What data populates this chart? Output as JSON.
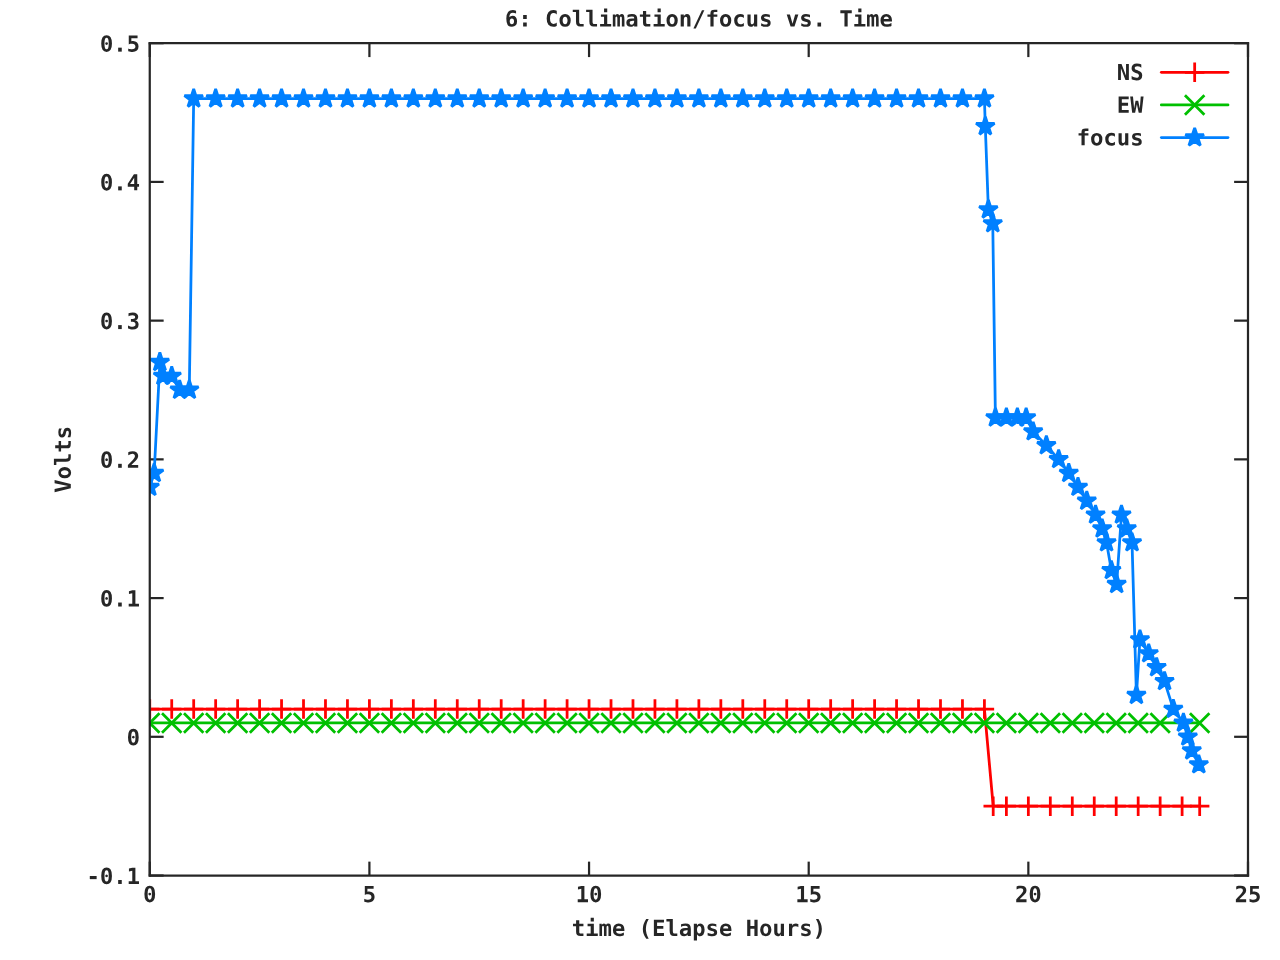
{
  "chart_data": {
    "type": "line",
    "title": "6: Collimation/focus vs. Time",
    "xlabel": "time (Elapse Hours)",
    "ylabel": "Volts",
    "xlim": [
      0,
      25
    ],
    "xticks": [
      0,
      5,
      10,
      15,
      20,
      25
    ],
    "ylim": [
      -0.1,
      0.5
    ],
    "yticks": [
      -0.1,
      0,
      0.1,
      0.2,
      0.3,
      0.4,
      0.5
    ],
    "grid": false,
    "legend": "top right",
    "line_style": "solid",
    "series": [
      {
        "name": "NS",
        "color": "#ff0000",
        "marker": "plus",
        "x": [
          0,
          0.5,
          1,
          1.5,
          2,
          2.5,
          3,
          3.5,
          4,
          4.5,
          5,
          5.5,
          6,
          6.5,
          7,
          7.5,
          8,
          8.5,
          9,
          9.5,
          10,
          10.5,
          11,
          11.5,
          12,
          12.5,
          13,
          13.5,
          14,
          14.5,
          15,
          15.5,
          16,
          16.5,
          17,
          17.5,
          18,
          18.5,
          19,
          19.2,
          19.5,
          20,
          20.5,
          21,
          21.5,
          22,
          22.5,
          23,
          23.5,
          23.9
        ],
        "values": [
          0.02,
          0.02,
          0.02,
          0.02,
          0.02,
          0.02,
          0.02,
          0.02,
          0.02,
          0.02,
          0.02,
          0.02,
          0.02,
          0.02,
          0.02,
          0.02,
          0.02,
          0.02,
          0.02,
          0.02,
          0.02,
          0.02,
          0.02,
          0.02,
          0.02,
          0.02,
          0.02,
          0.02,
          0.02,
          0.02,
          0.02,
          0.02,
          0.02,
          0.02,
          0.02,
          0.02,
          0.02,
          0.02,
          0.02,
          -0.05,
          -0.05,
          -0.05,
          -0.05,
          -0.05,
          -0.05,
          -0.05,
          -0.05,
          -0.05,
          -0.05,
          -0.05
        ]
      },
      {
        "name": "EW",
        "color": "#00c000",
        "marker": "cross",
        "x": [
          0,
          0.5,
          1,
          1.5,
          2,
          2.5,
          3,
          3.5,
          4,
          4.5,
          5,
          5.5,
          6,
          6.5,
          7,
          7.5,
          8,
          8.5,
          9,
          9.5,
          10,
          10.5,
          11,
          11.5,
          12,
          12.5,
          13,
          13.5,
          14,
          14.5,
          15,
          15.5,
          16,
          16.5,
          17,
          17.5,
          18,
          18.5,
          19,
          19.5,
          20,
          20.5,
          21,
          21.5,
          22,
          22.5,
          23,
          23.9
        ],
        "values": [
          0.01,
          0.01,
          0.01,
          0.01,
          0.01,
          0.01,
          0.01,
          0.01,
          0.01,
          0.01,
          0.01,
          0.01,
          0.01,
          0.01,
          0.01,
          0.01,
          0.01,
          0.01,
          0.01,
          0.01,
          0.01,
          0.01,
          0.01,
          0.01,
          0.01,
          0.01,
          0.01,
          0.01,
          0.01,
          0.01,
          0.01,
          0.01,
          0.01,
          0.01,
          0.01,
          0.01,
          0.01,
          0.01,
          0.01,
          0.01,
          0.01,
          0.01,
          0.01,
          0.01,
          0.01,
          0.01,
          0.01,
          0.01
        ]
      },
      {
        "name": "focus",
        "color": "#0080ff",
        "marker": "star",
        "x": [
          0,
          0.1,
          0.23,
          0.3,
          0.5,
          0.68,
          0.9,
          1.0,
          1.5,
          2,
          2.5,
          3,
          3.5,
          4,
          4.5,
          5,
          5.5,
          6,
          6.5,
          7,
          7.5,
          8,
          8.5,
          9,
          9.5,
          10,
          10.5,
          11,
          11.5,
          12,
          12.5,
          13,
          13.5,
          14,
          14.5,
          15,
          15.5,
          16,
          16.5,
          17,
          17.5,
          18,
          18.5,
          19,
          19.02,
          19.09,
          19.19,
          19.25,
          19.5,
          19.75,
          19.95,
          20.11,
          20.41,
          20.69,
          20.92,
          21.13,
          21.33,
          21.53,
          21.68,
          21.78,
          21.89,
          22.01,
          22.12,
          22.24,
          22.36,
          22.46,
          22.54,
          22.74,
          22.92,
          23.1,
          23.3,
          23.53,
          23.63,
          23.72,
          23.88
        ],
        "values": [
          0.18,
          0.19,
          0.27,
          0.26,
          0.26,
          0.25,
          0.25,
          0.46,
          0.46,
          0.46,
          0.46,
          0.46,
          0.46,
          0.46,
          0.46,
          0.46,
          0.46,
          0.46,
          0.46,
          0.46,
          0.46,
          0.46,
          0.46,
          0.46,
          0.46,
          0.46,
          0.46,
          0.46,
          0.46,
          0.46,
          0.46,
          0.46,
          0.46,
          0.46,
          0.46,
          0.46,
          0.46,
          0.46,
          0.46,
          0.46,
          0.46,
          0.46,
          0.46,
          0.46,
          0.44,
          0.38,
          0.37,
          0.23,
          0.23,
          0.23,
          0.23,
          0.22,
          0.21,
          0.2,
          0.19,
          0.18,
          0.17,
          0.16,
          0.15,
          0.14,
          0.12,
          0.11,
          0.16,
          0.15,
          0.14,
          0.03,
          0.07,
          0.06,
          0.05,
          0.04,
          0.02,
          0.01,
          0.0,
          -0.01,
          -0.02
        ]
      }
    ]
  }
}
